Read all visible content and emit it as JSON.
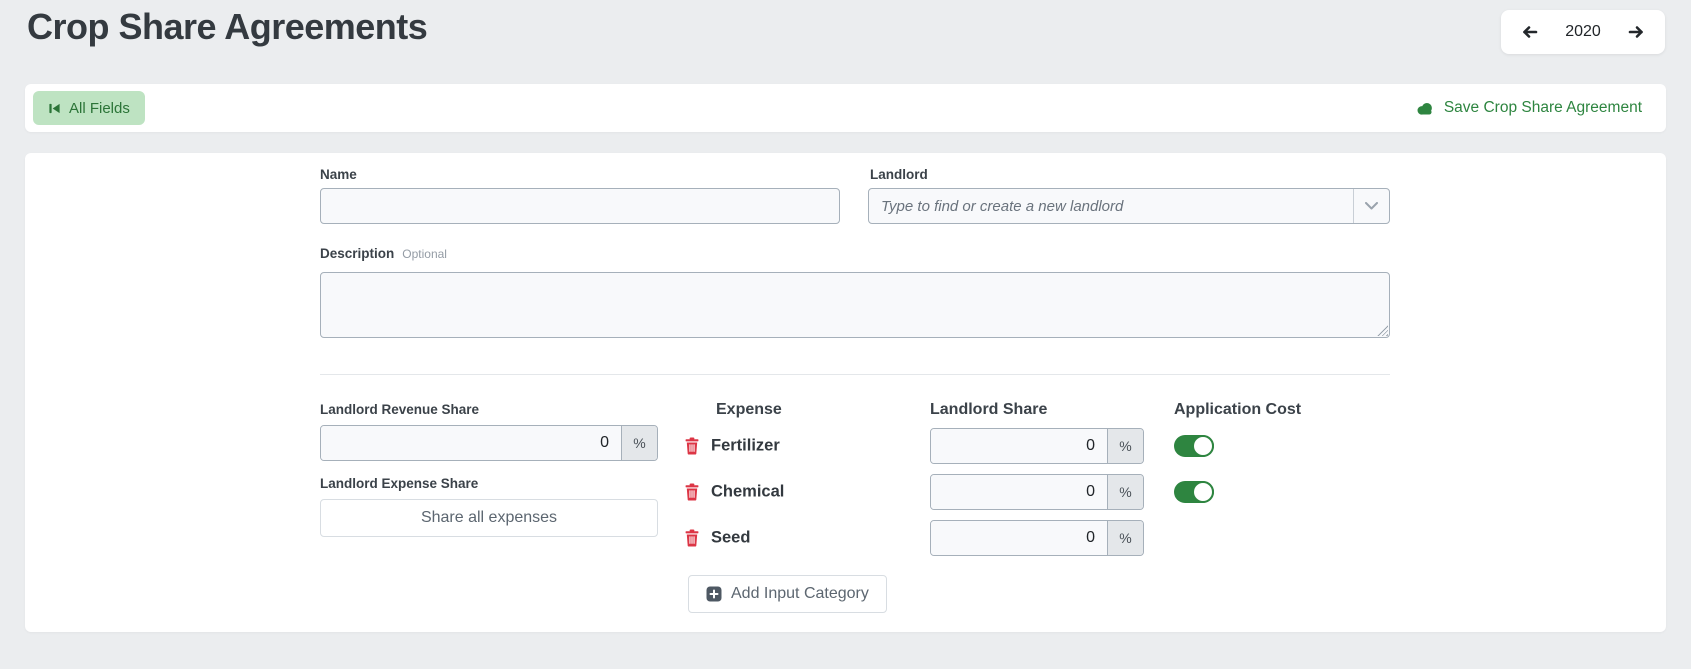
{
  "page": {
    "title": "Crop Share Agreements"
  },
  "year_nav": {
    "year": "2020"
  },
  "toolbar": {
    "all_fields_label": "All Fields",
    "save_label": "Save Crop Share Agreement"
  },
  "form": {
    "name": {
      "label": "Name",
      "value": ""
    },
    "landlord": {
      "label": "Landlord",
      "value": "",
      "placeholder": "Type to find or create a new landlord"
    },
    "description": {
      "label": "Description",
      "hint": "Optional",
      "value": ""
    },
    "landlord_revenue_share": {
      "label": "Landlord Revenue Share",
      "value": "0",
      "unit": "%"
    },
    "landlord_expense_share": {
      "label": "Landlord Expense Share",
      "button_label": "Share all expenses"
    },
    "expenses": {
      "headers": {
        "expense": "Expense",
        "landlord_share": "Landlord Share",
        "application_cost": "Application Cost"
      },
      "rows": [
        {
          "name": "Fertilizer",
          "landlord_share": "0",
          "unit": "%",
          "application_cost_toggle": true,
          "application_cost_on": true
        },
        {
          "name": "Chemical",
          "landlord_share": "0",
          "unit": "%",
          "application_cost_toggle": true,
          "application_cost_on": true
        },
        {
          "name": "Seed",
          "landlord_share": "0",
          "unit": "%",
          "application_cost_toggle": false,
          "application_cost_on": false
        }
      ],
      "add_button_label": "Add Input Category"
    }
  },
  "icons": {
    "all_fields": "skip-back-icon",
    "save": "cloud-icon",
    "landlord_dropdown": "chevron-down-icon",
    "expense_delete": "trash-icon",
    "add_category": "plus-square-icon",
    "year_prev": "arrow-left-icon",
    "year_next": "arrow-right-icon"
  },
  "colors": {
    "accent_green": "#2E8540",
    "all_fields_bg": "#BEE3C2",
    "all_fields_text": "#2B7437",
    "danger_red": "#DC3545",
    "page_bg": "#EBEDEF",
    "title_text": "#343A40",
    "input_border": "#A6B0BA"
  }
}
